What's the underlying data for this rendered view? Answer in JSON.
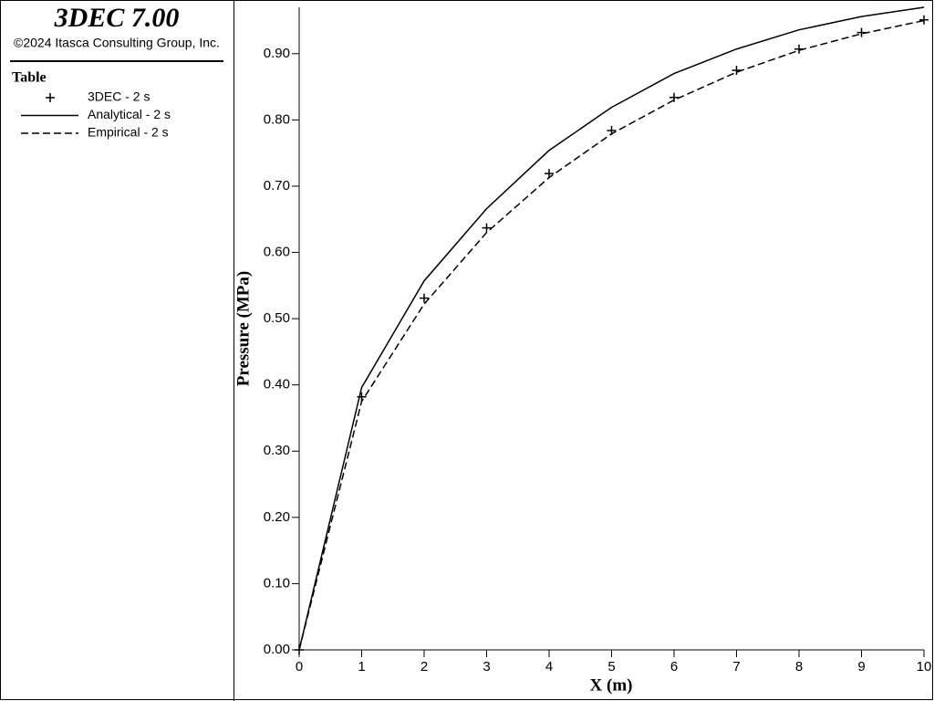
{
  "header": {
    "title": "3DEC 7.00",
    "copyright": "©2024 Itasca Consulting Group, Inc.",
    "legend_title": "Table"
  },
  "chart_data": {
    "type": "line",
    "xlabel": "X (m)",
    "ylabel": "Pressure (MPa)",
    "xlim": [
      0,
      10
    ],
    "xticks": [
      0,
      1,
      2,
      3,
      4,
      5,
      6,
      7,
      8,
      9,
      10
    ],
    "ylim": [
      0,
      0.97
    ],
    "yticks": [
      {
        "value": 0,
        "label": "0.00"
      },
      {
        "value": 0.1,
        "label": "0.10"
      },
      {
        "value": 0.2,
        "label": "0.20"
      },
      {
        "value": 0.3,
        "label": "0.30"
      },
      {
        "value": 0.4,
        "label": "0.40"
      },
      {
        "value": 0.5,
        "label": "0.50"
      },
      {
        "value": 0.6,
        "label": "0.60"
      },
      {
        "value": 0.7,
        "label": "0.70"
      },
      {
        "value": 0.8,
        "label": "0.80"
      },
      {
        "value": 0.9,
        "label": "0.90"
      }
    ],
    "x": [
      0,
      1,
      2,
      3,
      4,
      5,
      6,
      7,
      8,
      9,
      10
    ],
    "series": [
      {
        "name": "3DEC - 2 s",
        "color": "#000000",
        "style": "marker",
        "values": [
          0,
          0.382,
          0.531,
          0.637,
          0.719,
          0.784,
          0.834,
          0.875,
          0.907,
          0.932,
          0.951
        ]
      },
      {
        "name": "Analytical - 2 s",
        "color": "#000000",
        "style": "solid",
        "values": [
          0,
          0.396,
          0.557,
          0.666,
          0.754,
          0.819,
          0.87,
          0.907,
          0.936,
          0.956,
          0.97
        ]
      },
      {
        "name": "Empirical - 2 s",
        "color": "#000000",
        "style": "dashed",
        "values": [
          0,
          0.375,
          0.522,
          0.63,
          0.713,
          0.779,
          0.83,
          0.872,
          0.905,
          0.93,
          0.95
        ]
      }
    ]
  }
}
